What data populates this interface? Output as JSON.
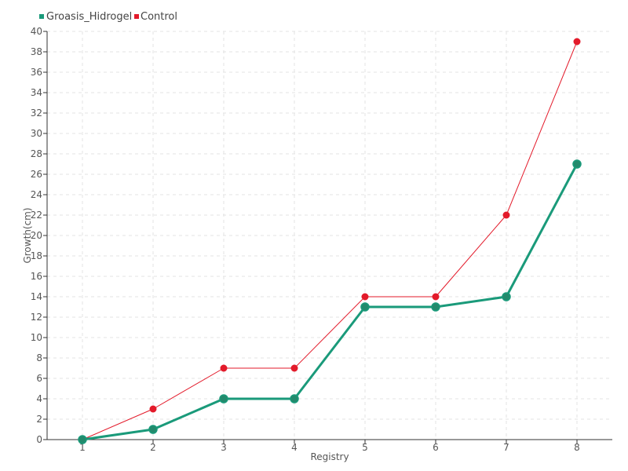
{
  "chart_data": {
    "type": "line",
    "x": [
      1,
      2,
      3,
      4,
      5,
      6,
      7,
      8
    ],
    "series": [
      {
        "name": "Groasis_Hidrogel",
        "color": "#1a9a7a",
        "values": [
          0,
          1,
          4,
          4,
          13,
          13,
          14,
          27
        ]
      },
      {
        "name": "Control",
        "color": "#e31a2a",
        "values": [
          0,
          3,
          7,
          7,
          14,
          14,
          22,
          39
        ]
      }
    ],
    "xlabel": "Registry",
    "ylabel": "Growth(cm)",
    "ylim": [
      0,
      40
    ],
    "yticks": [
      0,
      2,
      4,
      6,
      8,
      10,
      12,
      14,
      16,
      18,
      20,
      22,
      24,
      26,
      28,
      30,
      32,
      34,
      36,
      38,
      40
    ],
    "xticks": [
      1,
      2,
      3,
      4,
      5,
      6,
      7,
      8
    ],
    "grid": true,
    "legend_position": "top-left"
  }
}
